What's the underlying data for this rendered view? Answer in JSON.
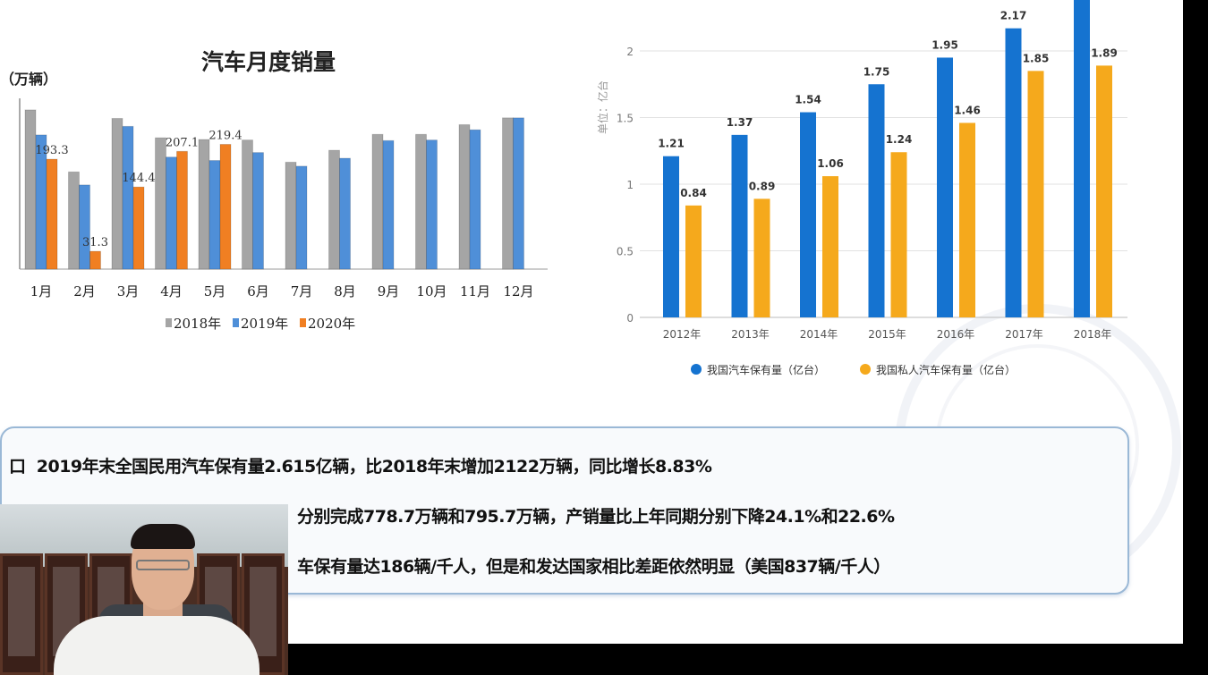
{
  "left_chart": {
    "type": "bar",
    "title": "汽车月度销量",
    "unit_label": "（万辆）",
    "categories": [
      "1月",
      "2月",
      "3月",
      "4月",
      "5月",
      "6月",
      "7月",
      "8月",
      "9月",
      "10月",
      "11月",
      "12月"
    ],
    "series": [
      {
        "name": "2018年",
        "color": "#a5a5a5",
        "values": [
          280,
          171,
          265,
          231,
          228,
          227,
          188,
          209,
          237,
          237,
          254,
          266
        ]
      },
      {
        "name": "2019年",
        "color": "#4f8fd8",
        "values": [
          236,
          148,
          251,
          197,
          191,
          205,
          181,
          195,
          226,
          227,
          245,
          266
        ]
      },
      {
        "name": "2020年",
        "color": "#f07f22",
        "values": [
          193.3,
          31.3,
          144.4,
          207.1,
          219.4,
          null,
          null,
          null,
          null,
          null,
          null,
          null
        ]
      }
    ],
    "data_labels": [
      {
        "series": "2020年",
        "category": "1月",
        "text": "193.3"
      },
      {
        "series": "2020年",
        "category": "2月",
        "text": "31.3"
      },
      {
        "series": "2020年",
        "category": "3月",
        "text": "144.4"
      },
      {
        "series": "2020年",
        "category": "4月",
        "text": "207.1"
      },
      {
        "series": "2020年",
        "category": "5月",
        "text": "219.4"
      }
    ],
    "legend_position": "bottom",
    "ylim": [
      0,
      320
    ]
  },
  "chart_data": [
    {
      "type": "bar",
      "ylabel": "单位：亿台",
      "categories": [
        "2012年",
        "2013年",
        "2014年",
        "2015年",
        "2016年",
        "2017年",
        "2018年"
      ],
      "series": [
        {
          "name": "我国汽车保有量（亿台）",
          "color": "#1573d0",
          "values": [
            1.21,
            1.37,
            1.54,
            1.75,
            1.95,
            2.17,
            2.4
          ],
          "labels": [
            "1.21",
            "1.37",
            "1.54",
            "1.75",
            "1.95",
            "2.17",
            ""
          ]
        },
        {
          "name": "我国私人汽车保有量（亿台）",
          "color": "#f5a91c",
          "values": [
            0.84,
            0.89,
            1.06,
            1.24,
            1.46,
            1.85,
            1.89
          ],
          "labels": [
            "0.84",
            "0.89",
            "1.06",
            "1.24",
            "1.46",
            "1.85",
            "1.89"
          ]
        }
      ],
      "yticks": [
        "0",
        "0.5",
        "1",
        "1.5",
        "2"
      ],
      "ylim": [
        0,
        2.35
      ],
      "grid": true,
      "legend_position": "bottom"
    }
  ],
  "notes": {
    "bullet": "口",
    "line1": "2019年末全国民用汽车保有量2.615亿辆，比2018年末增加2122万辆，同比增长8.83%",
    "line2_visible": "分别完成778.7万辆和795.7万辆，产销量比上年同期分别下降24.1%和22.6%",
    "line3_visible": "车保有量达186辆/千人，但是和发达国家相比差距依然明显（美国837辆/千人）"
  }
}
